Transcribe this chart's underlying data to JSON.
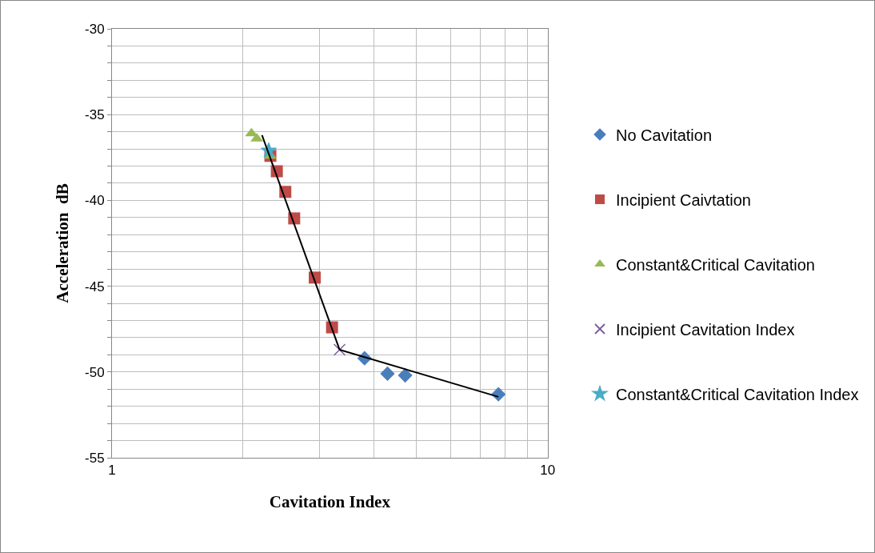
{
  "chart_data": {
    "type": "scatter",
    "xlabel": "Cavitation Index",
    "ylabel": "Acceleration  dB",
    "log": "x",
    "grid": true,
    "legend": "right",
    "xlim": [
      1,
      10
    ],
    "xticks": [
      1,
      {
        "value": 2,
        "label": null
      },
      {
        "value": 3,
        "label": null
      },
      {
        "value": 4,
        "label": null
      },
      {
        "value": 5,
        "label": null
      },
      {
        "value": 6,
        "label": null
      },
      {
        "value": 7,
        "label": null
      },
      {
        "value": 8,
        "label": null
      },
      {
        "value": 9,
        "label": null
      },
      10
    ],
    "ylim": [
      -55,
      -30
    ],
    "yticks": [
      -55,
      {
        "value": -54,
        "label": null
      },
      {
        "value": -53,
        "label": null
      },
      {
        "value": -52,
        "label": null
      },
      {
        "value": -51,
        "label": null
      },
      -50,
      {
        "value": -49,
        "label": null
      },
      {
        "value": -48,
        "label": null
      },
      {
        "value": -47,
        "label": null
      },
      {
        "value": -46,
        "label": null
      },
      -45,
      {
        "value": -44,
        "label": null
      },
      {
        "value": -43,
        "label": null
      },
      {
        "value": -42,
        "label": null
      },
      {
        "value": -41,
        "label": null
      },
      -40,
      {
        "value": -39,
        "label": null
      },
      {
        "value": -38,
        "label": null
      },
      {
        "value": -37,
        "label": null
      },
      {
        "value": -36,
        "label": null
      },
      -35,
      {
        "value": -34,
        "label": null
      },
      {
        "value": -33,
        "label": null
      },
      {
        "value": -32,
        "label": null
      },
      {
        "value": -31,
        "label": null
      },
      -30
    ],
    "series": [
      {
        "name": "No Cavitation",
        "color": "#4a7ebb",
        "marker": "diamond",
        "x": [
          3.8,
          4.29,
          4.71,
          7.71
        ],
        "values": [
          -49.2,
          -50.1,
          -50.2,
          -51.3
        ]
      },
      {
        "name": "Incipient Caivtation",
        "color": "#be4b48",
        "marker": "square",
        "x": [
          2.31,
          2.39,
          2.5,
          2.62,
          2.92,
          3.2
        ],
        "values": [
          -37.4,
          -38.3,
          -39.5,
          -41.05,
          -44.5,
          -47.4
        ]
      },
      {
        "name": "Constant&Critical Cavitation",
        "color": "#98b954",
        "marker": "triangle",
        "x": [
          2.09,
          2.15,
          2.31
        ],
        "values": [
          -36.1,
          -36.4,
          -37.4
        ]
      },
      {
        "name": "Incipient Cavitation Index",
        "color": "#7d60a0",
        "marker": "cross",
        "x": [
          3.33
        ],
        "values": [
          -48.7
        ]
      },
      {
        "name": "Constant&Critical Cavitation Index",
        "color": "#4bacc6",
        "marker": "star",
        "x": [
          2.29
        ],
        "values": [
          -37.1
        ]
      },
      {
        "type": "line",
        "color": "#000000",
        "marker": "none",
        "x": [
          2.21,
          3.33
        ],
        "values": [
          -36.2,
          -48.7
        ]
      },
      {
        "type": "line",
        "color": "#000000",
        "marker": "none",
        "x": [
          3.33,
          7.71
        ],
        "values": [
          -48.7,
          -51.45
        ]
      }
    ]
  }
}
